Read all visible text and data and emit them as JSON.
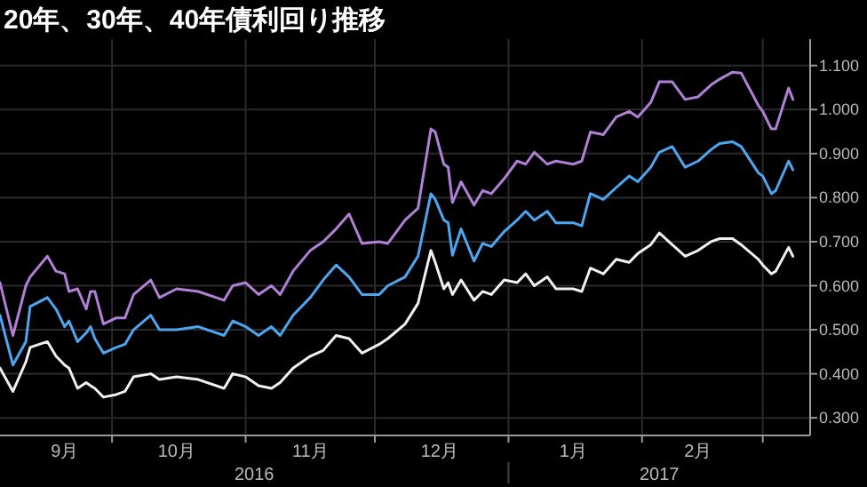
{
  "chart_data": {
    "type": "line",
    "title": "20年、30年、40年債利回り推移",
    "x": [
      "2016-09-05",
      "2016-09-08",
      "2016-09-11",
      "2016-09-12",
      "2016-09-16",
      "2016-09-18",
      "2016-09-20",
      "2016-09-21",
      "2016-09-23",
      "2016-09-25",
      "2016-09-26",
      "2016-09-27",
      "2016-09-29",
      "2016-10-02",
      "2016-10-04",
      "2016-10-06",
      "2016-10-10",
      "2016-10-12",
      "2016-10-16",
      "2016-10-21",
      "2016-10-27",
      "2016-10-29",
      "2016-11-01",
      "2016-11-04",
      "2016-11-07",
      "2016-11-09",
      "2016-11-12",
      "2016-11-16",
      "2016-11-19",
      "2016-11-22",
      "2016-11-25",
      "2016-11-28",
      "2016-12-02",
      "2016-12-04",
      "2016-12-08",
      "2016-12-11",
      "2016-12-14",
      "2016-12-15",
      "2016-12-17",
      "2016-12-18",
      "2016-12-19",
      "2016-12-21",
      "2016-12-24",
      "2016-12-26",
      "2016-12-28",
      "2016-12-31",
      "2017-01-03",
      "2017-01-05",
      "2017-01-07",
      "2017-01-10",
      "2017-01-12",
      "2017-01-16",
      "2017-01-18",
      "2017-01-20",
      "2017-01-23",
      "2017-01-26",
      "2017-01-29",
      "2017-01-31",
      "2017-02-03",
      "2017-02-05",
      "2017-02-08",
      "2017-02-11",
      "2017-02-14",
      "2017-02-17",
      "2017-02-19",
      "2017-02-22",
      "2017-02-24",
      "2017-02-28",
      "2017-03-01",
      "2017-03-03",
      "2017-03-04",
      "2017-03-07",
      "2017-03-08"
    ],
    "series": [
      {
        "color": "#b07fd6",
        "values": [
          0.607,
          0.487,
          0.6,
          0.62,
          0.667,
          0.633,
          0.627,
          0.587,
          0.593,
          0.547,
          0.587,
          0.587,
          0.513,
          0.527,
          0.527,
          0.58,
          0.613,
          0.573,
          0.593,
          0.587,
          0.567,
          0.6,
          0.607,
          0.58,
          0.6,
          0.58,
          0.633,
          0.68,
          0.7,
          0.729,
          0.763,
          0.696,
          0.7,
          0.696,
          0.749,
          0.776,
          0.956,
          0.949,
          0.876,
          0.869,
          0.789,
          0.836,
          0.783,
          0.816,
          0.809,
          0.843,
          0.883,
          0.876,
          0.903,
          0.876,
          0.883,
          0.876,
          0.883,
          0.949,
          0.943,
          0.983,
          0.996,
          0.983,
          1.016,
          1.063,
          1.063,
          1.023,
          1.029,
          1.056,
          1.069,
          1.085,
          1.083,
          1.009,
          0.996,
          0.956,
          0.956,
          1.049,
          1.023
        ]
      },
      {
        "color": "#4da6f0",
        "values": [
          0.533,
          0.42,
          0.473,
          0.553,
          0.573,
          0.547,
          0.507,
          0.52,
          0.473,
          0.493,
          0.507,
          0.48,
          0.447,
          0.46,
          0.467,
          0.5,
          0.533,
          0.5,
          0.5,
          0.507,
          0.487,
          0.52,
          0.507,
          0.487,
          0.507,
          0.487,
          0.533,
          0.573,
          0.613,
          0.647,
          0.62,
          0.58,
          0.58,
          0.6,
          0.62,
          0.667,
          0.809,
          0.796,
          0.749,
          0.743,
          0.669,
          0.729,
          0.656,
          0.696,
          0.689,
          0.723,
          0.749,
          0.769,
          0.749,
          0.769,
          0.743,
          0.743,
          0.736,
          0.809,
          0.796,
          0.823,
          0.849,
          0.836,
          0.869,
          0.903,
          0.916,
          0.869,
          0.883,
          0.909,
          0.923,
          0.927,
          0.916,
          0.856,
          0.849,
          0.809,
          0.816,
          0.883,
          0.863
        ]
      },
      {
        "color": "#f0f0f0",
        "values": [
          0.413,
          0.36,
          0.427,
          0.46,
          0.473,
          0.44,
          0.42,
          0.413,
          0.367,
          0.38,
          0.373,
          0.367,
          0.347,
          0.353,
          0.36,
          0.393,
          0.4,
          0.387,
          0.393,
          0.387,
          0.367,
          0.4,
          0.393,
          0.373,
          0.367,
          0.38,
          0.413,
          0.44,
          0.453,
          0.487,
          0.48,
          0.447,
          0.467,
          0.48,
          0.513,
          0.56,
          0.68,
          0.653,
          0.593,
          0.607,
          0.58,
          0.613,
          0.567,
          0.587,
          0.58,
          0.613,
          0.607,
          0.627,
          0.6,
          0.62,
          0.593,
          0.593,
          0.587,
          0.64,
          0.627,
          0.66,
          0.653,
          0.673,
          0.693,
          0.72,
          0.693,
          0.667,
          0.68,
          0.7,
          0.707,
          0.707,
          0.693,
          0.66,
          0.647,
          0.627,
          0.633,
          0.687,
          0.667
        ]
      }
    ],
    "xlim": [
      "2016-09-05",
      "2017-03-12"
    ],
    "xticks": [
      {
        "value": "2016-09-20",
        "label": "9月"
      },
      {
        "value": "2016-10-01",
        "label": null
      },
      {
        "value": "2016-10-16",
        "label": "10月"
      },
      {
        "value": "2016-11-01",
        "label": null
      },
      {
        "value": "2016-11-16",
        "label": "11月"
      },
      {
        "value": "2016-12-01",
        "label": null
      },
      {
        "value": "2016-12-16",
        "label": "12月"
      },
      {
        "value": "2017-01-01",
        "label": null
      },
      {
        "value": "2017-01-16",
        "label": "1月"
      },
      {
        "value": "2017-02-01",
        "label": null
      },
      {
        "value": "2017-02-14",
        "label": "2月"
      },
      {
        "value": "2017-03-01",
        "label": null
      }
    ],
    "ylim": [
      0.26,
      1.16
    ],
    "yticks": [
      {
        "value": 0.3,
        "label": "0.300"
      },
      {
        "value": 0.4,
        "label": "0.400"
      },
      {
        "value": 0.5,
        "label": "0.500"
      },
      {
        "value": 0.6,
        "label": "0.600"
      },
      {
        "value": 0.7,
        "label": "0.700"
      },
      {
        "value": 0.8,
        "label": "0.800"
      },
      {
        "value": 0.9,
        "label": "0.900"
      },
      {
        "value": 1.0,
        "label": "1.000"
      },
      {
        "value": 1.1,
        "label": "1.100"
      }
    ],
    "annotations": [
      "2016",
      "2017"
    ],
    "grid": true
  }
}
